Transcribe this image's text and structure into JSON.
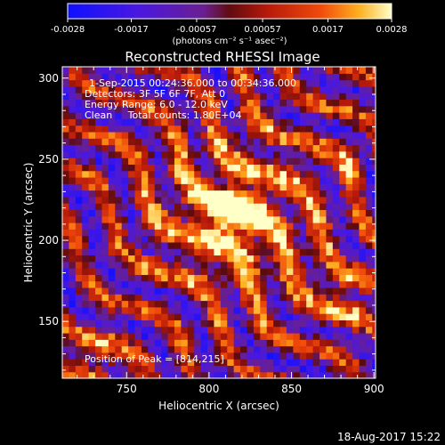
{
  "chart_data": {
    "type": "heatmap",
    "title": "Reconstructed RHESSI Image",
    "xlabel": "Heliocentric X (arcsec)",
    "ylabel": "Heliocentric Y (arcsec)",
    "xlim": [
      711,
      901
    ],
    "ylim": [
      115,
      307
    ],
    "xticks": [
      750,
      800,
      850,
      900
    ],
    "yticks": [
      150,
      200,
      250,
      300
    ],
    "colorbar": {
      "min": -0.0028,
      "max": 0.0028,
      "ticks": [
        "-0.0028",
        "-0.0017",
        "-0.00057",
        "0.00057",
        "0.0017",
        "0.0028"
      ],
      "units": "(photons cm⁻² s⁻¹ asec⁻²)"
    },
    "peak": {
      "x": 814,
      "y": 215,
      "value": 0.0028
    },
    "annotations": {
      "time": "1-Sep-2015 00:24:36.000 to 00:34:36.000",
      "detectors": "Detectors: 3F 5F 6F 7F, Att 0",
      "energy": "Energy Range: 6.0 - 12.0 keV",
      "clean": "Clean     Total counts: 1.80E+04",
      "peak_label": "Position of Peak = [814,215]"
    }
  },
  "footer": {
    "timestamp": "18-Aug-2017 15:22"
  }
}
